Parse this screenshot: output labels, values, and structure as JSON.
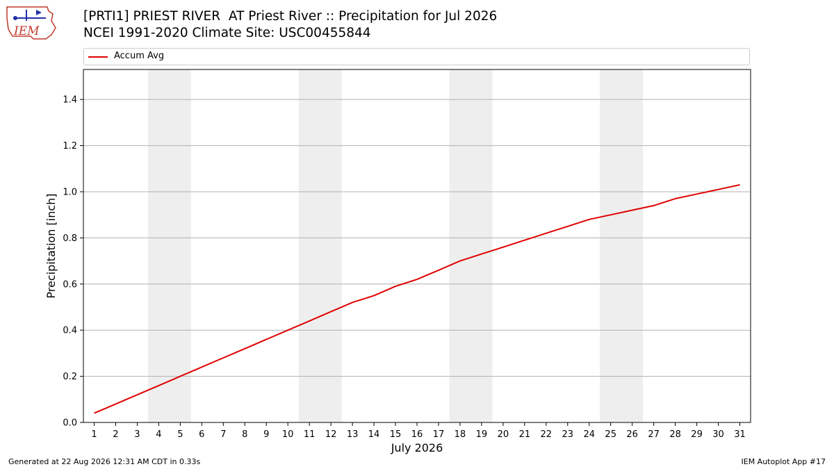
{
  "header": {
    "title_line1": "[PRTI1] PRIEST RIVER  AT Priest River :: Precipitation for Jul 2026",
    "title_line2": "NCEI 1991-2020 Climate Site: USC00455844"
  },
  "logo": {
    "text": "IEM",
    "icon": "iem-logo-icon"
  },
  "footer": {
    "generated": "Generated at 22 Aug 2026 12:31 AM CDT in 0.33s",
    "app": "IEM Autoplot App #17"
  },
  "chart_data": {
    "type": "line",
    "title": "[PRTI1] PRIEST RIVER  AT Priest River :: Precipitation for Jul 2026",
    "subtitle": "NCEI 1991-2020 Climate Site: USC00455844",
    "xlabel": "July 2026",
    "ylabel": "Precipitation [inch]",
    "x": [
      1,
      2,
      3,
      4,
      5,
      6,
      7,
      8,
      9,
      10,
      11,
      12,
      13,
      14,
      15,
      16,
      17,
      18,
      19,
      20,
      21,
      22,
      23,
      24,
      25,
      26,
      27,
      28,
      29,
      30,
      31
    ],
    "xlim": [
      0.5,
      31.5
    ],
    "ylim": [
      0,
      1.53
    ],
    "yticks": [
      0.0,
      0.2,
      0.4,
      0.6,
      0.8,
      1.0,
      1.2,
      1.4
    ],
    "ytick_labels": [
      "0.0",
      "0.2",
      "0.4",
      "0.6",
      "0.8",
      "1.0",
      "1.2",
      "1.4"
    ],
    "grid": "horizontal",
    "legend": "top",
    "weekend_bands": [
      [
        3.5,
        5.5
      ],
      [
        10.5,
        12.5
      ],
      [
        17.5,
        19.5
      ],
      [
        24.5,
        26.5
      ]
    ],
    "series": [
      {
        "name": "Accum Avg",
        "color": "#e00000",
        "values": [
          0.04,
          0.08,
          0.12,
          0.16,
          0.2,
          0.24,
          0.28,
          0.32,
          0.36,
          0.4,
          0.44,
          0.48,
          0.52,
          0.55,
          0.59,
          0.62,
          0.66,
          0.7,
          0.73,
          0.76,
          0.79,
          0.82,
          0.85,
          0.88,
          0.9,
          0.92,
          0.94,
          0.97,
          0.99,
          1.01,
          1.03
        ]
      }
    ]
  }
}
